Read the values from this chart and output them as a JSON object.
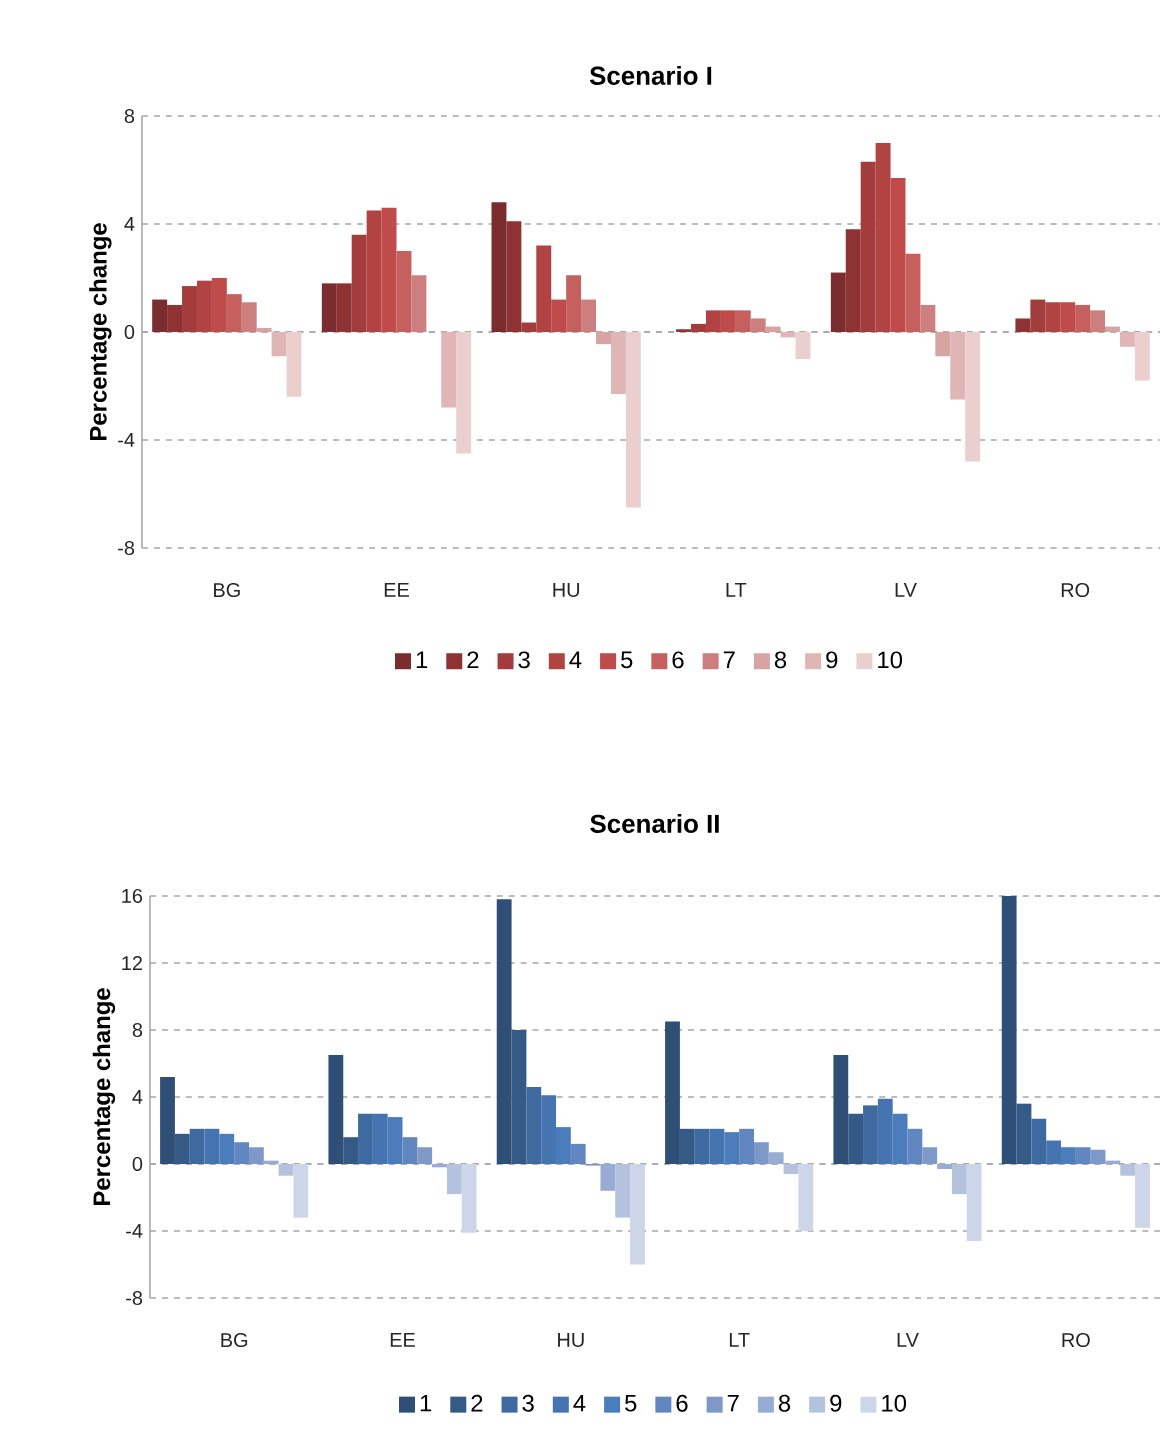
{
  "chart_data": [
    {
      "type": "bar",
      "title": "Scenario I",
      "ylabel": "Percentage change",
      "categories": [
        "BG",
        "EE",
        "HU",
        "LT",
        "LV",
        "RO"
      ],
      "ylim": [
        -8,
        8
      ],
      "yticks": [
        -8,
        -4,
        0,
        4,
        8
      ],
      "grid": "y",
      "legend": "bottom",
      "series": [
        {
          "name": "1",
          "color": "#7b2c2f",
          "values": [
            1.2,
            1.8,
            4.8,
            0,
            2.2,
            0
          ]
        },
        {
          "name": "2",
          "color": "#8e3234",
          "values": [
            1.0,
            1.8,
            4.1,
            0.1,
            3.8,
            0.5
          ]
        },
        {
          "name": "3",
          "color": "#a33c3c",
          "values": [
            1.7,
            3.6,
            0.35,
            0.3,
            6.3,
            1.2
          ]
        },
        {
          "name": "4",
          "color": "#b14443",
          "values": [
            1.9,
            4.5,
            3.2,
            0.8,
            7.0,
            1.1
          ]
        },
        {
          "name": "5",
          "color": "#bf4b4b",
          "values": [
            2.0,
            4.6,
            1.2,
            0.8,
            5.7,
            1.1
          ]
        },
        {
          "name": "6",
          "color": "#c5605f",
          "values": [
            1.4,
            3.0,
            2.1,
            0.8,
            2.9,
            1.0
          ]
        },
        {
          "name": "7",
          "color": "#cd7f7f",
          "values": [
            1.1,
            2.1,
            1.2,
            0.5,
            1.0,
            0.8
          ]
        },
        {
          "name": "8",
          "color": "#d8a3a3",
          "values": [
            0.15,
            0,
            -0.45,
            0.2,
            -0.9,
            0.2
          ]
        },
        {
          "name": "9",
          "color": "#e0b5b5",
          "values": [
            -0.9,
            -2.8,
            -2.3,
            -0.2,
            -2.5,
            -0.55
          ]
        },
        {
          "name": "10",
          "color": "#ebcfcf",
          "values": [
            -2.4,
            -4.5,
            -6.5,
            -1.0,
            -4.8,
            -1.8
          ]
        }
      ]
    },
    {
      "type": "bar",
      "title": "Scenario II",
      "ylabel": "Percentage change",
      "categories": [
        "BG",
        "EE",
        "HU",
        "LT",
        "LV",
        "RO"
      ],
      "ylim": [
        -8,
        16
      ],
      "yticks": [
        -8,
        -4,
        0,
        4,
        8,
        12,
        16
      ],
      "grid": "y",
      "legend": "bottom",
      "series": [
        {
          "name": "1",
          "color": "#2f4f77",
          "values": [
            5.2,
            6.5,
            15.8,
            8.5,
            6.5,
            16.0
          ]
        },
        {
          "name": "2",
          "color": "#355a86",
          "values": [
            1.8,
            1.6,
            8.0,
            2.1,
            3.0,
            3.6
          ]
        },
        {
          "name": "3",
          "color": "#3e6aa0",
          "values": [
            2.1,
            3.0,
            4.6,
            2.1,
            3.5,
            2.7
          ]
        },
        {
          "name": "4",
          "color": "#4574b0",
          "values": [
            2.1,
            3.0,
            4.1,
            2.1,
            3.9,
            1.4
          ]
        },
        {
          "name": "5",
          "color": "#4b7dbc",
          "values": [
            1.8,
            2.8,
            2.2,
            1.9,
            3.0,
            1.0
          ]
        },
        {
          "name": "6",
          "color": "#6287c0",
          "values": [
            1.3,
            1.6,
            1.2,
            2.1,
            2.1,
            1.0
          ]
        },
        {
          "name": "7",
          "color": "#7e99c8",
          "values": [
            1.0,
            1.0,
            -0.1,
            1.3,
            1.0,
            0.85
          ]
        },
        {
          "name": "8",
          "color": "#98acd3",
          "values": [
            0.2,
            -0.2,
            -1.6,
            0.7,
            -0.3,
            0.2
          ]
        },
        {
          "name": "9",
          "color": "#b4c2de",
          "values": [
            -0.7,
            -1.8,
            -3.2,
            -0.6,
            -1.8,
            -0.7
          ]
        },
        {
          "name": "10",
          "color": "#cdd6e8",
          "values": [
            -3.2,
            -4.1,
            -6.0,
            -4.0,
            -4.6,
            -3.8
          ]
        }
      ]
    }
  ]
}
